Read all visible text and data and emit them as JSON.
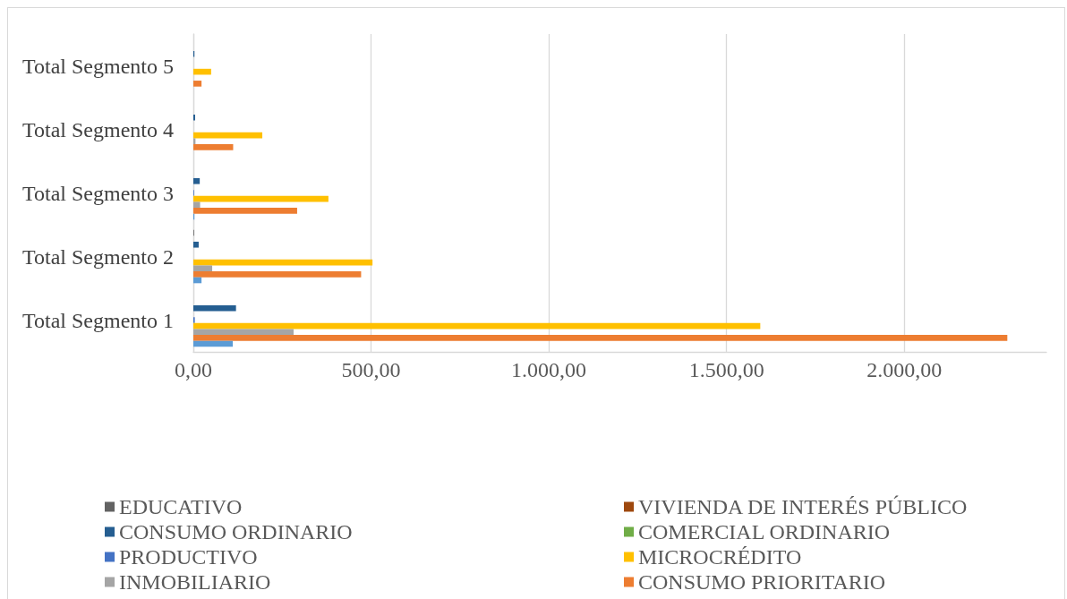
{
  "chart_data": {
    "type": "bar",
    "orientation": "horizontal",
    "categories": [
      "Total Segmento 5",
      "Total Segmento 4",
      "Total Segmento 3",
      "Total Segmento 2",
      "Total Segmento 1"
    ],
    "series": [
      {
        "name": "EDUCATIVO",
        "color": "#636363",
        "values": [
          0,
          0,
          0,
          2,
          0
        ]
      },
      {
        "name": "VIVIENDA DE INTERÉS PÚBLICO",
        "color": "#9e480e",
        "values": [
          0,
          0,
          0,
          0,
          0
        ]
      },
      {
        "name": "CONSUMO ORDINARIO",
        "color": "#255e91",
        "values": [
          3,
          5,
          18,
          15,
          120
        ]
      },
      {
        "name": "COMERCIAL ORDINARIO",
        "color": "#70ad47",
        "values": [
          0,
          0,
          0,
          0,
          0
        ]
      },
      {
        "name": "PRODUCTIVO",
        "color": "#4472c4",
        "values": [
          0,
          0,
          2,
          0,
          4
        ]
      },
      {
        "name": "MICROCRÉDITO",
        "color": "#ffc000",
        "values": [
          50,
          194,
          380,
          504,
          1595
        ]
      },
      {
        "name": "INMOBILIARIO",
        "color": "#a5a5a5",
        "values": [
          0,
          6,
          19,
          53,
          282
        ]
      },
      {
        "name": "CONSUMO PRIORITARIO",
        "color": "#ed7d31",
        "values": [
          23,
          112,
          292,
          472,
          2290
        ]
      },
      {
        "color": "#5b9bd5",
        "values": [
          0,
          0,
          3,
          23,
          111
        ]
      }
    ],
    "xlim": [
      0,
      2400
    ],
    "xticks": [
      {
        "value": 0,
        "label": "0,00"
      },
      {
        "value": 500,
        "label": "500,00"
      },
      {
        "value": 1000,
        "label": "1.000,00"
      },
      {
        "value": 1500,
        "label": "1.500,00"
      },
      {
        "value": 2000,
        "label": "2.000,00"
      }
    ],
    "grid": "x",
    "legend": "bottom"
  }
}
